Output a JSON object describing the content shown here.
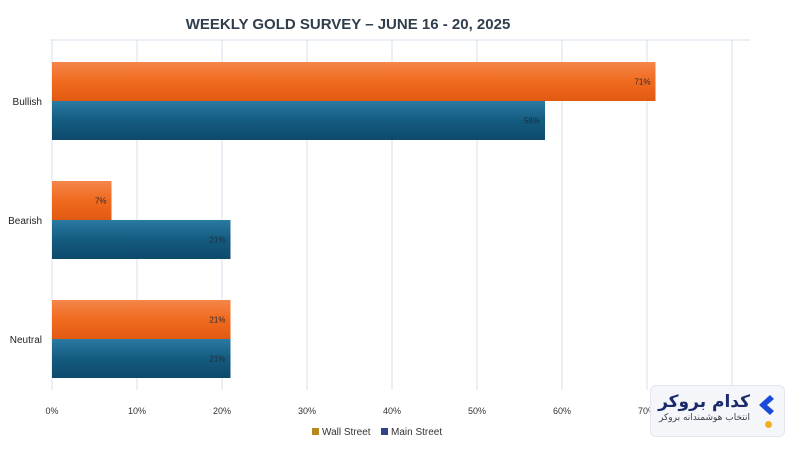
{
  "chart_data": {
    "type": "bar",
    "orientation": "horizontal",
    "title": "WEEKLY GOLD SURVEY – JUNE 16 - 20, 2025",
    "categories": [
      "Bullish",
      "Bearish",
      "Neutral"
    ],
    "series": [
      {
        "name": "Wall Street",
        "values": [
          71,
          7,
          21
        ],
        "labels": [
          "71%",
          "7%",
          "21%"
        ],
        "color": "#f06a1e"
      },
      {
        "name": "Main Street",
        "values": [
          58,
          21,
          21
        ],
        "labels": [
          "58%",
          "21%",
          "21%"
        ],
        "color": "#145b80"
      }
    ],
    "legend_colors": [
      "#b8881c",
      "#33428a"
    ],
    "x_ticks": [
      0,
      10,
      20,
      30,
      40,
      50,
      60,
      70
    ],
    "x_tick_labels": [
      "0%",
      "10%",
      "20%",
      "30%",
      "40%",
      "50%",
      "60%",
      "70%"
    ],
    "xlim": [
      0,
      80
    ],
    "grid": true,
    "legend_position": "bottom"
  },
  "watermark": {
    "main": "کدام بروکر",
    "sub": "انتخاب هوشمندانه بروکر",
    "icon": "chevron-left-logo-icon"
  }
}
